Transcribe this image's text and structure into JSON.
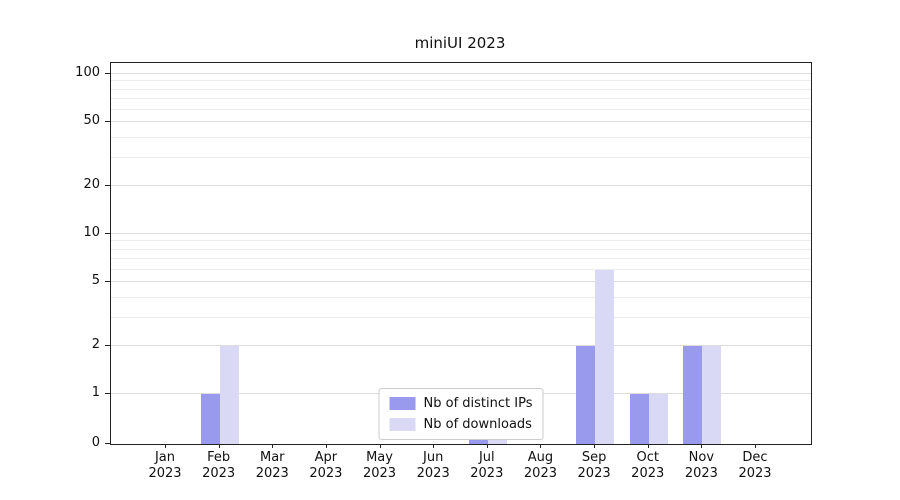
{
  "chart_data": {
    "type": "bar",
    "title": "miniUI 2023",
    "xlabel": "",
    "ylabel": "",
    "scale": "symlog",
    "ylim": [
      0,
      115
    ],
    "yticks": [
      0,
      1,
      2,
      5,
      10,
      20,
      50,
      100
    ],
    "minor_ticks": [
      3,
      4,
      6,
      7,
      8,
      9,
      30,
      40,
      60,
      70,
      80,
      90
    ],
    "grid": "on",
    "legend_position": "lower center",
    "months": [
      "Jan",
      "Feb",
      "Mar",
      "Apr",
      "May",
      "Jun",
      "Jul",
      "Aug",
      "Sep",
      "Oct",
      "Nov",
      "Dec"
    ],
    "year": "2023",
    "series": [
      {
        "name": "Nb of distinct IPs",
        "color": "#9999ee",
        "values": [
          0,
          1,
          0,
          0,
          0,
          0,
          1,
          0,
          2,
          1,
          2,
          0
        ]
      },
      {
        "name": "Nb of downloads",
        "color": "#d9d9f6",
        "values": [
          0,
          2,
          0,
          0,
          0,
          0,
          1,
          0,
          6,
          1,
          2,
          0
        ]
      }
    ]
  }
}
